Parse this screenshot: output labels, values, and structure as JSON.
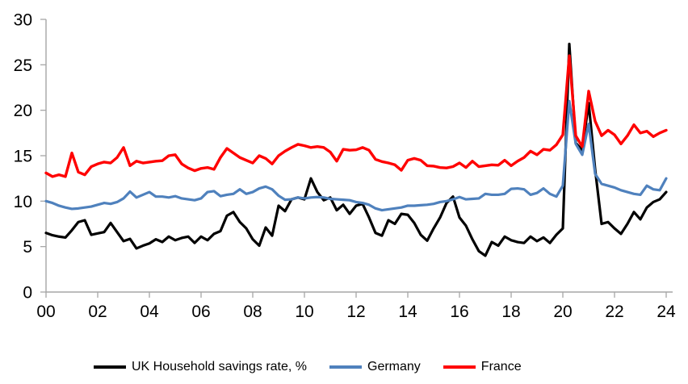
{
  "chart_data": {
    "type": "line",
    "title": "",
    "xlabel": "",
    "ylabel": "",
    "x_start": "2000Q1",
    "x_end": "2024Q1",
    "points_per_year": 4,
    "x_ticks": [
      "00",
      "02",
      "04",
      "06",
      "08",
      "10",
      "12",
      "14",
      "16",
      "18",
      "20",
      "22",
      "24"
    ],
    "y_ticks": [
      0,
      5,
      10,
      15,
      20,
      25,
      30
    ],
    "ylim": [
      0,
      30
    ],
    "grid": false,
    "legend_position": "bottom",
    "axis_color": "#a6a6a6",
    "tick_label_color": "#000000",
    "series": [
      {
        "name": "UK Household savings rate, %",
        "color": "#000000",
        "stroke_width": 3.2,
        "values": [
          6.5,
          6.25,
          6.1,
          6.0,
          6.8,
          7.7,
          7.9,
          6.3,
          6.45,
          6.6,
          7.6,
          6.6,
          5.6,
          5.85,
          4.8,
          5.1,
          5.35,
          5.8,
          5.5,
          6.1,
          5.7,
          5.95,
          6.1,
          5.4,
          6.1,
          5.7,
          6.4,
          6.7,
          8.4,
          8.8,
          7.7,
          7.0,
          5.8,
          5.1,
          7.1,
          6.2,
          9.5,
          8.9,
          10.2,
          10.4,
          10.2,
          12.5,
          11.0,
          10.1,
          10.4,
          9.0,
          9.6,
          8.6,
          9.5,
          9.7,
          8.2,
          6.5,
          6.2,
          7.9,
          7.5,
          8.6,
          8.5,
          7.6,
          6.3,
          5.65,
          7.0,
          8.2,
          9.8,
          10.5,
          8.2,
          7.3,
          5.8,
          4.5,
          4.0,
          5.5,
          5.1,
          6.1,
          5.7,
          5.5,
          5.4,
          6.1,
          5.6,
          6.0,
          5.4,
          6.3,
          7.0,
          27.3,
          16.4,
          15.6,
          20.8,
          13.5,
          7.5,
          7.7,
          7.0,
          6.4,
          7.5,
          8.8,
          8.0,
          9.3,
          9.9,
          10.2,
          11.0
        ]
      },
      {
        "name": "Germany",
        "color": "#4f81bd",
        "stroke_width": 3.2,
        "values": [
          10.0,
          9.8,
          9.5,
          9.3,
          9.15,
          9.2,
          9.3,
          9.4,
          9.6,
          9.8,
          9.7,
          9.9,
          10.3,
          11.05,
          10.4,
          10.7,
          11.0,
          10.5,
          10.5,
          10.4,
          10.55,
          10.3,
          10.2,
          10.1,
          10.3,
          11.0,
          11.1,
          10.55,
          10.7,
          10.8,
          11.3,
          10.8,
          11.0,
          11.4,
          11.6,
          11.3,
          10.6,
          10.15,
          10.2,
          10.4,
          10.3,
          10.4,
          10.45,
          10.4,
          10.25,
          10.2,
          10.15,
          10.1,
          9.9,
          9.8,
          9.6,
          9.2,
          9.0,
          9.1,
          9.2,
          9.3,
          9.5,
          9.5,
          9.55,
          9.6,
          9.7,
          9.9,
          10.0,
          10.2,
          10.45,
          10.2,
          10.25,
          10.3,
          10.8,
          10.7,
          10.7,
          10.8,
          11.35,
          11.4,
          11.3,
          10.7,
          10.9,
          11.4,
          10.8,
          10.5,
          11.7,
          21.0,
          16.3,
          15.1,
          18.5,
          13.0,
          11.9,
          11.7,
          11.5,
          11.2,
          11.0,
          10.8,
          10.7,
          11.7,
          11.3,
          11.2,
          12.5
        ]
      },
      {
        "name": "France",
        "color": "#ff0000",
        "stroke_width": 3.4,
        "values": [
          13.1,
          12.7,
          12.9,
          12.7,
          15.3,
          13.2,
          12.9,
          13.8,
          14.1,
          14.3,
          14.2,
          14.8,
          15.9,
          13.9,
          14.4,
          14.2,
          14.3,
          14.4,
          14.45,
          15.0,
          15.1,
          14.1,
          13.65,
          13.35,
          13.6,
          13.7,
          13.5,
          14.8,
          15.8,
          15.3,
          14.8,
          14.5,
          14.2,
          15.0,
          14.7,
          14.1,
          15.0,
          15.5,
          15.9,
          16.25,
          16.1,
          15.9,
          16.0,
          15.9,
          15.4,
          14.4,
          15.7,
          15.6,
          15.65,
          15.9,
          15.6,
          14.6,
          14.35,
          14.2,
          14.0,
          13.4,
          14.5,
          14.7,
          14.5,
          13.9,
          13.85,
          13.7,
          13.65,
          13.8,
          14.2,
          13.7,
          14.4,
          13.8,
          13.9,
          14.0,
          13.95,
          14.5,
          13.9,
          14.4,
          14.8,
          15.5,
          15.1,
          15.7,
          15.6,
          16.2,
          17.3,
          26.0,
          17.2,
          16.0,
          22.1,
          18.8,
          17.2,
          17.8,
          17.3,
          16.3,
          17.2,
          18.4,
          17.5,
          17.7,
          17.1,
          17.5,
          17.8
        ]
      }
    ]
  }
}
